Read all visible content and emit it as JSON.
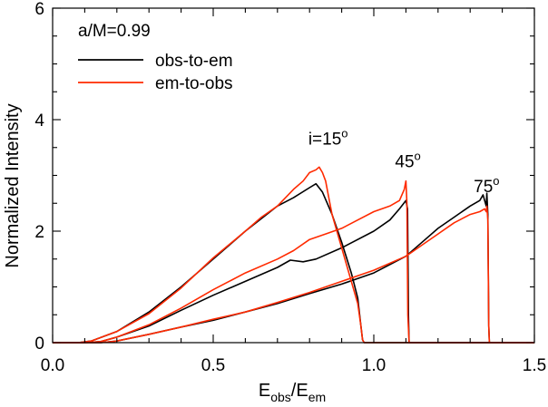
{
  "chart_data": {
    "type": "line",
    "title": "",
    "xlabel": {
      "base": "E",
      "sub1": "obs",
      "slash": "/E",
      "sub2": "em"
    },
    "ylabel": "Normalized Intensity",
    "xlim": [
      0.0,
      1.5
    ],
    "ylim": [
      0,
      6
    ],
    "x_ticks": [
      "0.0",
      "0.5",
      "1.0",
      "1.5"
    ],
    "y_ticks": [
      "0",
      "2",
      "4",
      "6"
    ],
    "grid": false,
    "legend": {
      "placement": "top-left",
      "header": "a/M=0.99",
      "entries": [
        {
          "label": "obs-to-em",
          "color": "#000000"
        },
        {
          "label": "em-to-obs",
          "color": "#ff2a00"
        }
      ]
    },
    "annotations": [
      {
        "text": "i=15",
        "sup": "o",
        "x": 0.83,
        "y": 3.55
      },
      {
        "text": "45",
        "sup": "o",
        "x": 1.1,
        "y": 3.15
      },
      {
        "text": "75",
        "sup": "o",
        "x": 1.345,
        "y": 2.7
      }
    ],
    "series": [
      {
        "inclination": 15,
        "method": "obs-to-em",
        "color": "#000000",
        "x": [
          0.0,
          0.08,
          0.12,
          0.2,
          0.3,
          0.4,
          0.5,
          0.6,
          0.7,
          0.75,
          0.8,
          0.82,
          0.84,
          0.87,
          0.9,
          0.93,
          0.95,
          0.96,
          0.965,
          0.97,
          1.5
        ],
        "y": [
          0.0,
          0.0,
          0.03,
          0.2,
          0.55,
          1.0,
          1.5,
          2.0,
          2.45,
          2.6,
          2.78,
          2.85,
          2.7,
          2.3,
          1.8,
          1.25,
          0.8,
          0.3,
          0.05,
          0.0,
          0.0
        ]
      },
      {
        "inclination": 15,
        "method": "em-to-obs",
        "color": "#ff2a00",
        "x": [
          0.0,
          0.08,
          0.12,
          0.2,
          0.3,
          0.4,
          0.5,
          0.6,
          0.65,
          0.7,
          0.75,
          0.78,
          0.8,
          0.82,
          0.83,
          0.84,
          0.85,
          0.86,
          0.87,
          0.9,
          0.93,
          0.95,
          0.96,
          0.965,
          0.97,
          1.5
        ],
        "y": [
          0.0,
          0.0,
          0.03,
          0.2,
          0.52,
          0.98,
          1.52,
          2.0,
          2.25,
          2.45,
          2.75,
          2.9,
          3.05,
          3.1,
          3.15,
          3.05,
          2.9,
          2.6,
          2.3,
          1.7,
          1.1,
          0.7,
          0.3,
          0.05,
          0.0,
          0.0
        ]
      },
      {
        "inclination": 45,
        "method": "obs-to-em",
        "color": "#000000",
        "x": [
          0.0,
          0.1,
          0.15,
          0.2,
          0.3,
          0.4,
          0.5,
          0.6,
          0.7,
          0.74,
          0.78,
          0.82,
          0.9,
          1.0,
          1.05,
          1.08,
          1.1,
          1.105,
          1.108,
          1.11,
          1.5
        ],
        "y": [
          0.0,
          0.0,
          0.02,
          0.1,
          0.3,
          0.58,
          0.85,
          1.1,
          1.35,
          1.48,
          1.45,
          1.5,
          1.7,
          2.0,
          2.2,
          2.4,
          2.55,
          2.4,
          0.5,
          0.0,
          0.0
        ]
      },
      {
        "inclination": 45,
        "method": "em-to-obs",
        "color": "#ff2a00",
        "x": [
          0.0,
          0.1,
          0.15,
          0.2,
          0.3,
          0.4,
          0.5,
          0.6,
          0.7,
          0.75,
          0.8,
          0.85,
          0.9,
          0.95,
          1.0,
          1.05,
          1.08,
          1.095,
          1.1,
          1.103,
          1.106,
          1.11,
          1.5
        ],
        "y": [
          0.0,
          0.0,
          0.02,
          0.1,
          0.32,
          0.62,
          0.95,
          1.25,
          1.5,
          1.65,
          1.85,
          1.95,
          2.05,
          2.2,
          2.35,
          2.45,
          2.55,
          2.75,
          2.9,
          2.5,
          0.5,
          0.0,
          0.0
        ]
      },
      {
        "inclination": 75,
        "method": "obs-to-em",
        "color": "#000000",
        "x": [
          0.0,
          0.15,
          0.2,
          0.3,
          0.4,
          0.5,
          0.6,
          0.7,
          0.8,
          0.9,
          1.0,
          1.1,
          1.15,
          1.2,
          1.25,
          1.3,
          1.33,
          1.34,
          1.35,
          1.352,
          1.355,
          1.358,
          1.36,
          1.5
        ],
        "y": [
          0.0,
          0.0,
          0.03,
          0.15,
          0.28,
          0.4,
          0.55,
          0.7,
          0.88,
          1.05,
          1.25,
          1.55,
          1.8,
          2.05,
          2.25,
          2.45,
          2.55,
          2.65,
          2.45,
          2.68,
          2.3,
          0.3,
          0.0,
          0.0
        ]
      },
      {
        "inclination": 75,
        "method": "em-to-obs",
        "color": "#ff2a00",
        "x": [
          0.0,
          0.15,
          0.2,
          0.3,
          0.4,
          0.5,
          0.6,
          0.7,
          0.8,
          0.9,
          1.0,
          1.1,
          1.15,
          1.2,
          1.25,
          1.3,
          1.33,
          1.345,
          1.35,
          1.352,
          1.355,
          1.358,
          1.36,
          1.5
        ],
        "y": [
          0.0,
          0.0,
          0.03,
          0.15,
          0.28,
          0.42,
          0.55,
          0.72,
          0.9,
          1.1,
          1.3,
          1.55,
          1.75,
          1.95,
          2.15,
          2.3,
          2.35,
          2.4,
          2.35,
          2.45,
          2.2,
          0.3,
          0.0,
          0.0
        ]
      }
    ]
  }
}
